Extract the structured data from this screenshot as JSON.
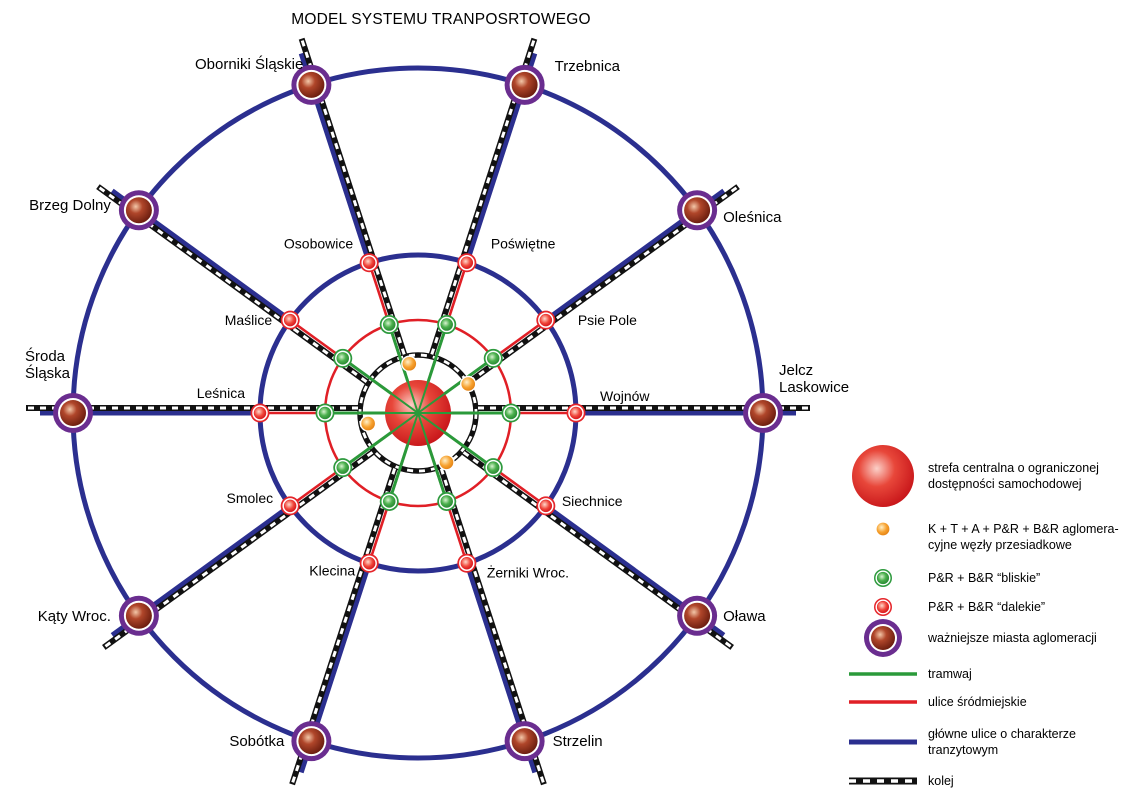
{
  "title": "MODEL SYSTEMU TRANPOSRTOWEGO",
  "colors": {
    "transit": "#2b2f8f",
    "city_street": "#e01f26",
    "tram": "#2a9a3a",
    "rail_dark": "#111111",
    "town_ring": "#6a2d8f",
    "town_fill": "#8a2e1a",
    "pr_far": "#e5252a",
    "pr_near": "#2e9a3e",
    "hub": "#f39a1f",
    "center": "#d8261e"
  },
  "towns": [
    {
      "label": "Oborniki Śląskie"
    },
    {
      "label": "Trzebnica"
    },
    {
      "label": "Oleśnica"
    },
    {
      "label": "Jelcz Laskowice"
    },
    {
      "label": "Oława"
    },
    {
      "label": "Strzelin"
    },
    {
      "label": "Sobótka"
    },
    {
      "label": "Kąty Wroc."
    },
    {
      "label": "Środa Śląska"
    },
    {
      "label": "Brzeg Dolny"
    }
  ],
  "far_nodes": [
    {
      "label": "Osobowice"
    },
    {
      "label": "Poświętne"
    },
    {
      "label": "Psie Pole"
    },
    {
      "label": "Wojnów"
    },
    {
      "label": "Siechnice"
    },
    {
      "label": "Żerniki Wroc."
    },
    {
      "label": "Klecina"
    },
    {
      "label": "Smolec"
    },
    {
      "label": "Leśnica"
    },
    {
      "label": "Maślice"
    }
  ],
  "legend": {
    "center_zone": "strefa centralna o ograniczonej dostępności samochodowej",
    "hub": "K + T + A + P&R + B&R aglomeracyjne węzły przesiadkowe",
    "pr_near": "P&R + B&R “bliskie”",
    "pr_far": "P&R + B&R “dalekie”",
    "towns": "ważniejsze miasta aglomeracji",
    "tram": "tramwaj",
    "city_streets": "ulice śródmiejskie",
    "transit_streets": "główne ulice o charakterze tranzytowym",
    "rail": "kolej"
  }
}
